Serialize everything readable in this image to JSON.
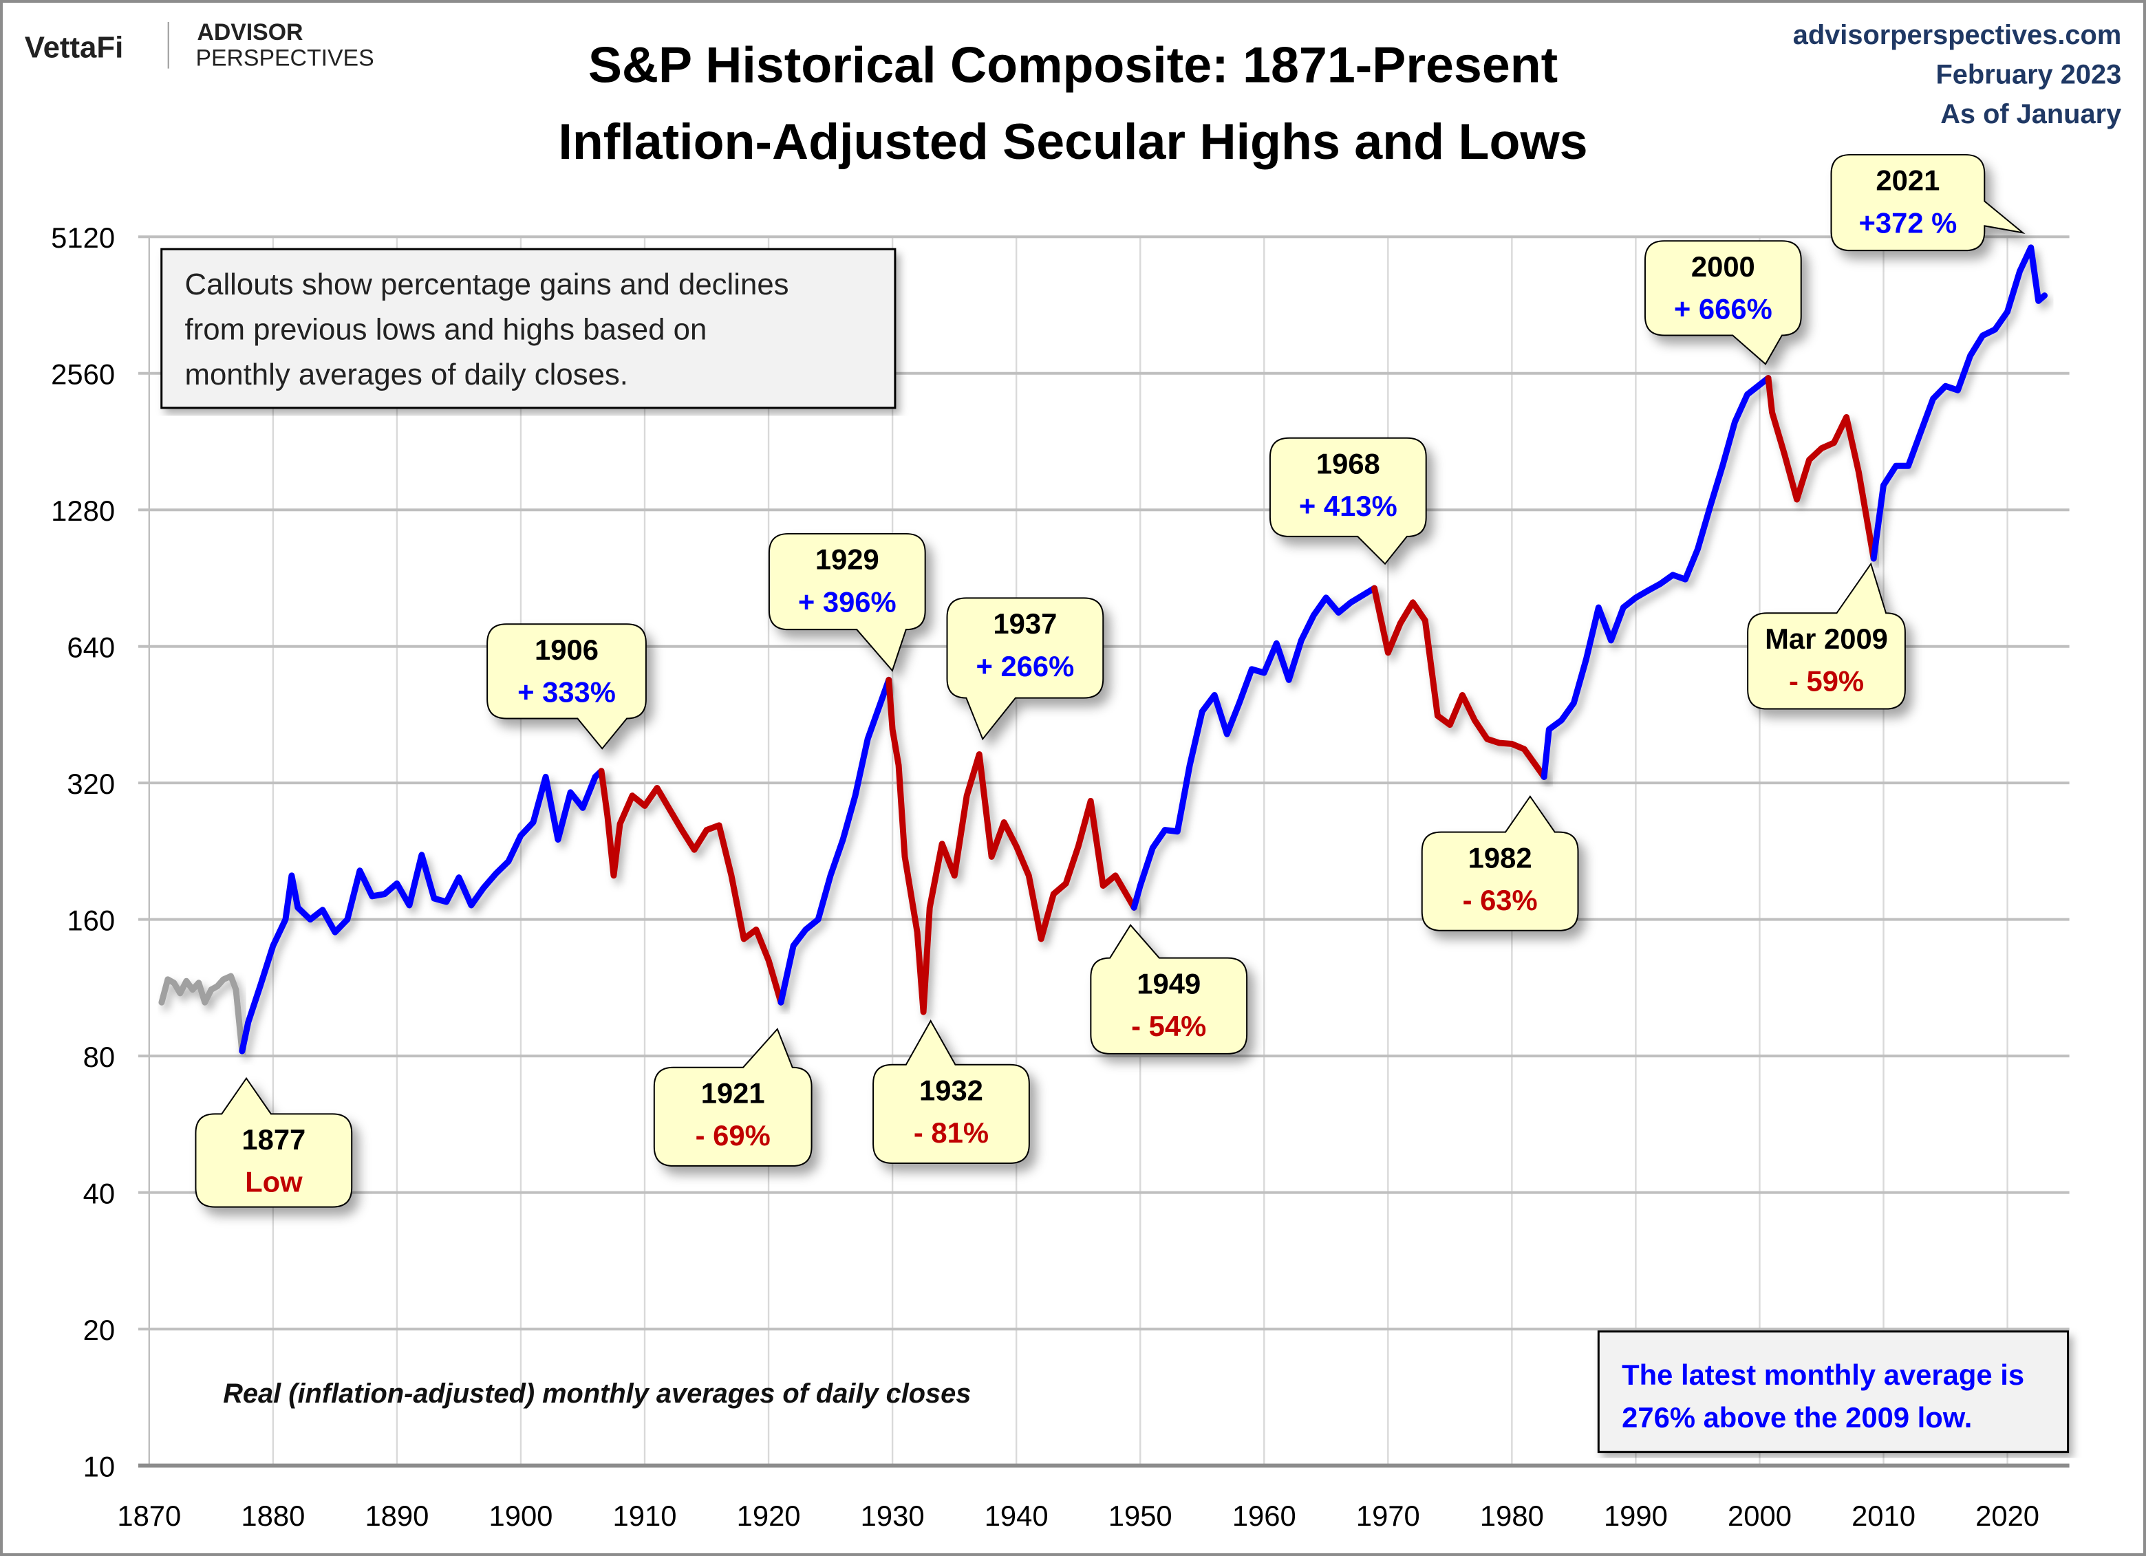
{
  "header": {
    "logo_vettafi": "VettaFi",
    "logo_advisor": "ADVISOR",
    "logo_perspectives": "PERSPECTIVES",
    "title_line1": "S&P Historical Composite: 1871-Present",
    "title_line2": "Inflation-Adjusted Secular Highs and Lows",
    "source_site": "advisorperspectives.com",
    "source_date": "February 2023",
    "source_asof": "As of January"
  },
  "notes": {
    "callout_note": [
      "Callouts show percentage gains and declines",
      "from previous lows and highs based on",
      "monthly averages of daily closes."
    ],
    "footnote": "Real (inflation-adjusted) monthly averages of daily closes",
    "latest": [
      "The latest monthly average is",
      "276% above the 2009 low."
    ]
  },
  "callouts": [
    {
      "label": "1877",
      "value": "Low",
      "direction": "down"
    },
    {
      "label": "1906",
      "value": "+ 333%",
      "direction": "up"
    },
    {
      "label": "1921",
      "value": "- 69%",
      "direction": "down"
    },
    {
      "label": "1929",
      "value": "+ 396%",
      "direction": "up"
    },
    {
      "label": "1932",
      "value": "- 81%",
      "direction": "down"
    },
    {
      "label": "1937",
      "value": "+ 266%",
      "direction": "up"
    },
    {
      "label": "1949",
      "value": "- 54%",
      "direction": "down"
    },
    {
      "label": "1968",
      "value": "+ 413%",
      "direction": "up"
    },
    {
      "label": "1982",
      "value": "- 63%",
      "direction": "down"
    },
    {
      "label": "2000",
      "value": "+ 666%",
      "direction": "up"
    },
    {
      "label": "Mar 2009",
      "value": "- 59%",
      "direction": "down"
    },
    {
      "label": "2021",
      "value": "+372 %",
      "direction": "up"
    }
  ],
  "colors": {
    "up": "#0000ff",
    "down": "#c00000",
    "pre": "#a0a0a0",
    "callout_fill": "#ffffcc",
    "source_text": "#1f3864"
  },
  "chart_data": {
    "type": "line",
    "title": "S&P Historical Composite: 1871-Present",
    "subtitle": "Inflation-Adjusted Secular Highs and Lows",
    "xlabel": "",
    "ylabel": "",
    "yscale": "log2",
    "xlim": [
      1870,
      2025
    ],
    "ylim": [
      10,
      5120
    ],
    "grid": true,
    "xticks": [
      "1870",
      "1880",
      "1890",
      "1900",
      "1910",
      "1920",
      "1930",
      "1940",
      "1950",
      "1960",
      "1970",
      "1980",
      "1990",
      "2000",
      "2010",
      "2020"
    ],
    "yticks": [
      "10",
      "20",
      "40",
      "80",
      "160",
      "320",
      "640",
      "1280",
      "2560",
      "5120"
    ],
    "segments": [
      {
        "trend": "pre",
        "points": [
          [
            1871,
            105
          ],
          [
            1871.5,
            118
          ],
          [
            1872,
            116
          ],
          [
            1872.5,
            110
          ],
          [
            1873,
            117
          ],
          [
            1873.5,
            112
          ],
          [
            1874,
            116
          ],
          [
            1874.5,
            105
          ],
          [
            1875,
            112
          ],
          [
            1875.5,
            114
          ],
          [
            1876,
            118
          ],
          [
            1876.6,
            120
          ],
          [
            1877,
            112
          ],
          [
            1877.5,
            82
          ]
        ]
      },
      {
        "trend": "up",
        "points": [
          [
            1877.5,
            82
          ],
          [
            1878,
            95
          ],
          [
            1879,
            115
          ],
          [
            1880,
            140
          ],
          [
            1881,
            160
          ],
          [
            1881.5,
            200
          ],
          [
            1882,
            170
          ],
          [
            1883,
            160
          ],
          [
            1884,
            168
          ],
          [
            1885,
            150
          ],
          [
            1886,
            160
          ],
          [
            1887,
            205
          ],
          [
            1888,
            180
          ],
          [
            1889,
            182
          ],
          [
            1890,
            192
          ],
          [
            1891,
            172
          ],
          [
            1892,
            222
          ],
          [
            1893,
            178
          ],
          [
            1894,
            175
          ],
          [
            1895,
            198
          ],
          [
            1896,
            172
          ],
          [
            1897,
            188
          ],
          [
            1898,
            202
          ],
          [
            1899,
            215
          ],
          [
            1900,
            245
          ],
          [
            1901,
            262
          ],
          [
            1902,
            330
          ],
          [
            1903,
            240
          ],
          [
            1904,
            305
          ],
          [
            1905,
            282
          ],
          [
            1906,
            330
          ],
          [
            1906.5,
            340
          ]
        ]
      },
      {
        "trend": "down",
        "points": [
          [
            1906.5,
            340
          ],
          [
            1907,
            270
          ],
          [
            1907.5,
            200
          ],
          [
            1908,
            260
          ],
          [
            1909,
            300
          ],
          [
            1910,
            285
          ],
          [
            1911,
            312
          ],
          [
            1912,
            280
          ],
          [
            1913,
            252
          ],
          [
            1914,
            228
          ],
          [
            1915,
            252
          ],
          [
            1916,
            258
          ],
          [
            1917,
            200
          ],
          [
            1918,
            145
          ],
          [
            1919,
            152
          ],
          [
            1920,
            130
          ],
          [
            1921,
            105
          ]
        ]
      },
      {
        "trend": "up",
        "points": [
          [
            1921,
            105
          ],
          [
            1922,
            140
          ],
          [
            1923,
            152
          ],
          [
            1924,
            160
          ],
          [
            1925,
            200
          ],
          [
            1926,
            240
          ],
          [
            1927,
            300
          ],
          [
            1928,
            400
          ],
          [
            1929.7,
            540
          ]
        ]
      },
      {
        "trend": "down",
        "points": [
          [
            1929.7,
            540
          ],
          [
            1930,
            420
          ],
          [
            1930.5,
            350
          ],
          [
            1931,
            220
          ],
          [
            1932,
            150
          ],
          [
            1932.5,
            100
          ],
          [
            1933,
            170
          ],
          [
            1934,
            235
          ],
          [
            1935,
            200
          ],
          [
            1936,
            300
          ],
          [
            1937,
            370
          ],
          [
            1938,
            220
          ],
          [
            1939,
            262
          ],
          [
            1940,
            232
          ],
          [
            1941,
            200
          ],
          [
            1942,
            145
          ],
          [
            1943,
            182
          ],
          [
            1944,
            192
          ],
          [
            1945,
            232
          ],
          [
            1946,
            292
          ],
          [
            1947,
            190
          ],
          [
            1948,
            200
          ],
          [
            1949.5,
            170
          ]
        ]
      },
      {
        "trend": "up",
        "points": [
          [
            1949.5,
            170
          ],
          [
            1950,
            190
          ],
          [
            1951,
            230
          ],
          [
            1952,
            252
          ],
          [
            1953,
            250
          ],
          [
            1954,
            350
          ],
          [
            1955,
            460
          ],
          [
            1956,
            500
          ],
          [
            1957,
            410
          ],
          [
            1958,
            480
          ],
          [
            1959,
            570
          ],
          [
            1960,
            560
          ],
          [
            1961,
            650
          ],
          [
            1962,
            540
          ],
          [
            1963,
            660
          ],
          [
            1964,
            750
          ],
          [
            1965,
            820
          ],
          [
            1966,
            760
          ],
          [
            1967,
            800
          ],
          [
            1968.9,
            860
          ]
        ]
      },
      {
        "trend": "down",
        "points": [
          [
            1968.9,
            860
          ],
          [
            1970,
            620
          ],
          [
            1971,
            720
          ],
          [
            1972,
            800
          ],
          [
            1973,
            730
          ],
          [
            1974,
            450
          ],
          [
            1975,
            430
          ],
          [
            1976,
            500
          ],
          [
            1977,
            440
          ],
          [
            1978,
            400
          ],
          [
            1979,
            392
          ],
          [
            1980,
            390
          ],
          [
            1981,
            380
          ],
          [
            1982.6,
            330
          ]
        ]
      },
      {
        "trend": "up",
        "points": [
          [
            1982.6,
            330
          ],
          [
            1983,
            420
          ],
          [
            1984,
            440
          ],
          [
            1985,
            480
          ],
          [
            1986,
            600
          ],
          [
            1987,
            780
          ],
          [
            1988,
            660
          ],
          [
            1989,
            780
          ],
          [
            1990,
            820
          ],
          [
            1991,
            850
          ],
          [
            1992,
            880
          ],
          [
            1993,
            920
          ],
          [
            1994,
            900
          ],
          [
            1995,
            1050
          ],
          [
            1996,
            1300
          ],
          [
            1997,
            1600
          ],
          [
            1998,
            2000
          ],
          [
            1999,
            2300
          ],
          [
            2000.7,
            2500
          ]
        ]
      },
      {
        "trend": "down",
        "points": [
          [
            2000.7,
            2500
          ],
          [
            2001,
            2100
          ],
          [
            2002,
            1700
          ],
          [
            2003,
            1350
          ],
          [
            2004,
            1650
          ],
          [
            2005,
            1750
          ],
          [
            2006,
            1800
          ],
          [
            2007,
            2050
          ],
          [
            2008,
            1550
          ],
          [
            2009.2,
            1000
          ]
        ]
      },
      {
        "trend": "up",
        "points": [
          [
            2009.2,
            1000
          ],
          [
            2010,
            1450
          ],
          [
            2011,
            1600
          ],
          [
            2012,
            1600
          ],
          [
            2013,
            1900
          ],
          [
            2014,
            2250
          ],
          [
            2015,
            2400
          ],
          [
            2016,
            2350
          ],
          [
            2017,
            2800
          ],
          [
            2018,
            3100
          ],
          [
            2019,
            3200
          ],
          [
            2020,
            3500
          ],
          [
            2021,
            4300
          ],
          [
            2021.9,
            4850
          ],
          [
            2022.5,
            3700
          ],
          [
            2023,
            3800
          ]
        ]
      }
    ]
  }
}
